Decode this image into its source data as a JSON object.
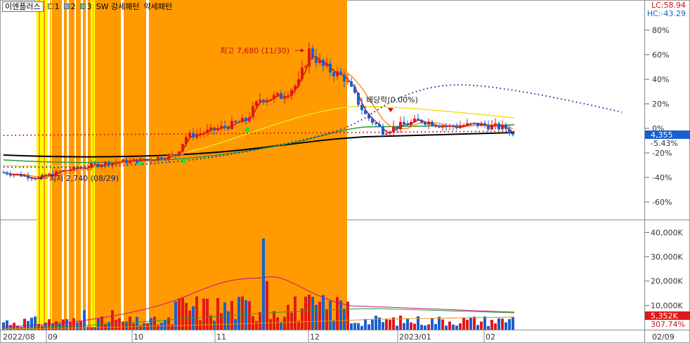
{
  "legend": {
    "stock_name": "이엔플러스",
    "items": [
      "1",
      "2",
      "3",
      "SW 강세패턴",
      "약세패턴"
    ]
  },
  "lc_hc": {
    "lc": "LC:58.94",
    "hc": "HC:-43.29"
  },
  "price_axis": {
    "ticks": [
      "80%",
      "60%",
      "40%",
      "20%",
      "0%",
      "-20%",
      "-40%",
      "-60%"
    ],
    "current_price": "4,355",
    "current_change": "-5.43%"
  },
  "volume_axis": {
    "ticks": [
      "40,000K",
      "30,000K",
      "20,000K",
      "10,000K"
    ],
    "current_volume": "5,352K",
    "current_ratio": "307.74%"
  },
  "x_axis": {
    "labels": [
      "2022/08",
      "09",
      "10",
      "11",
      "12",
      "2023/01",
      "02",
      "02/09"
    ]
  },
  "annotations": {
    "high": "최고 7,680 (11/30)",
    "low": "최저 2,740 (08/29)",
    "dividend": "배당락(0.00%)"
  },
  "colors": {
    "up": "#e01818",
    "down": "#1a5fd0",
    "highlight_orange": "#ff9a00",
    "highlight_yellow": "#ffff00",
    "ma5": "#d81010",
    "ma20": "#ff8c1a",
    "ma60": "#f0e020",
    "ma120": "#2a9a3a",
    "ma240": "#000000",
    "current_price_box": "#1a5fd0",
    "current_volume_box": "#e01818"
  },
  "chart_data": {
    "type": "candlestick",
    "price_range_pct": [
      -70,
      88
    ],
    "low_price": 2740,
    "high_price": 7680,
    "last_close": 4355,
    "last_change_pct": -5.43,
    "last_volume_k": 5352,
    "volume_range_k": [
      0,
      45000
    ]
  }
}
